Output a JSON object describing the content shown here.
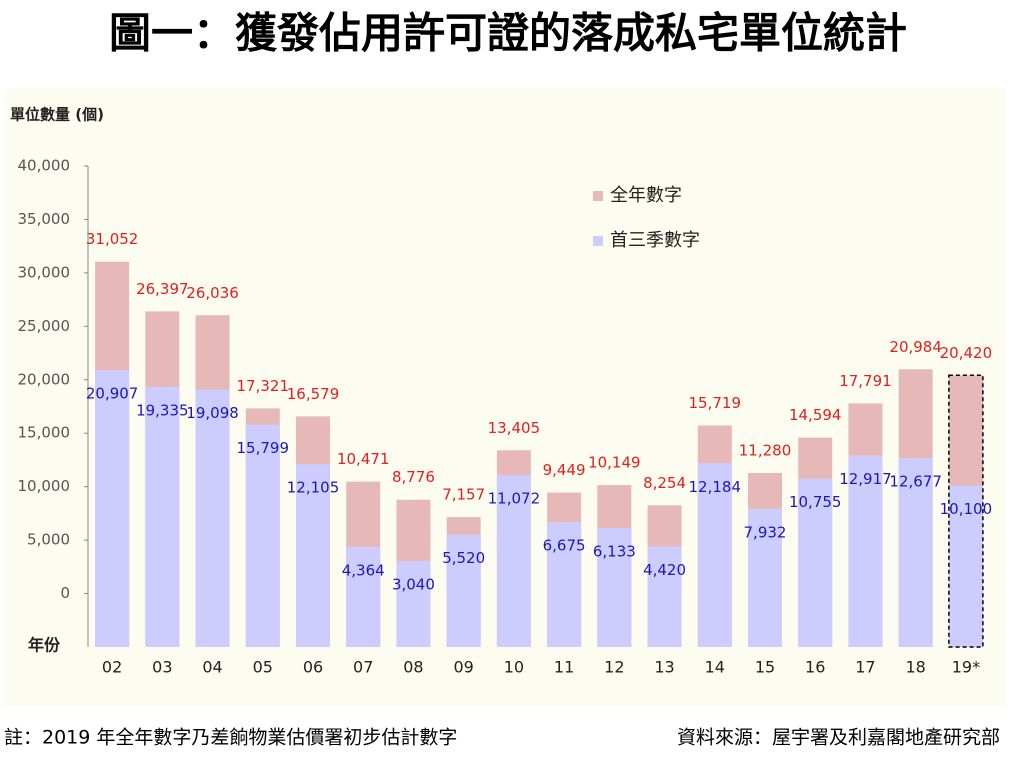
{
  "chart_data": {
    "type": "bar",
    "title": "圖一：獲發佔用許可證的落成私宅單位統計",
    "y_label": "單位數量 (個)",
    "x_label": "年份",
    "categories": [
      "02",
      "03",
      "04",
      "05",
      "06",
      "07",
      "08",
      "09",
      "10",
      "11",
      "12",
      "13",
      "14",
      "15",
      "16",
      "17",
      "18",
      "19*"
    ],
    "series": [
      {
        "name": "全年數字",
        "color": "#e6b9b8",
        "values": [
          31052,
          26397,
          26036,
          17321,
          16579,
          10471,
          8776,
          7157,
          13405,
          9449,
          10149,
          8254,
          15719,
          11280,
          14594,
          17791,
          20984,
          20420
        ],
        "value_labels": [
          "31,052",
          "26,397",
          "26,036",
          "17,321",
          "16,579",
          "10,471",
          "8,776",
          "7,157",
          "13,405",
          "9,449",
          "10,149",
          "8,254",
          "15,719",
          "11,280",
          "14,594",
          "17,791",
          "20,984",
          "20,420"
        ]
      },
      {
        "name": "首三季數字",
        "color": "#ccccff",
        "values": [
          20907,
          19335,
          19098,
          15799,
          12105,
          4364,
          3040,
          5520,
          11072,
          6675,
          6133,
          4420,
          12184,
          7932,
          10755,
          12917,
          12677,
          10100
        ],
        "value_labels": [
          "20,907",
          "19,335",
          "19,098",
          "15,799",
          "12,105",
          "4,364",
          "3,040",
          "5,520",
          "11,072",
          "6,675",
          "6,133",
          "4,420",
          "12,184",
          "7,932",
          "10,755",
          "12,917",
          "12,677",
          "10,100"
        ]
      }
    ],
    "ylim": [
      -5000,
      40000
    ],
    "yticks": [
      0,
      {
        "value": 5000,
        "label": "5,000"
      },
      {
        "value": 10000,
        "label": "10,000"
      },
      {
        "value": 15000,
        "label": "15,000"
      },
      {
        "value": 20000,
        "label": "20,000"
      },
      {
        "value": 25000,
        "label": "25,000"
      },
      {
        "value": 30000,
        "label": "30,000"
      },
      {
        "value": 35000,
        "label": "35,000"
      },
      {
        "value": 40000,
        "label": "40,000"
      }
    ],
    "legend_position": "top-right",
    "footnote": "註：2019 年全年數字乃差餉物業估價署初步估計數字",
    "source": "資料來源：屋宇署及利嘉閣地產研究部"
  }
}
